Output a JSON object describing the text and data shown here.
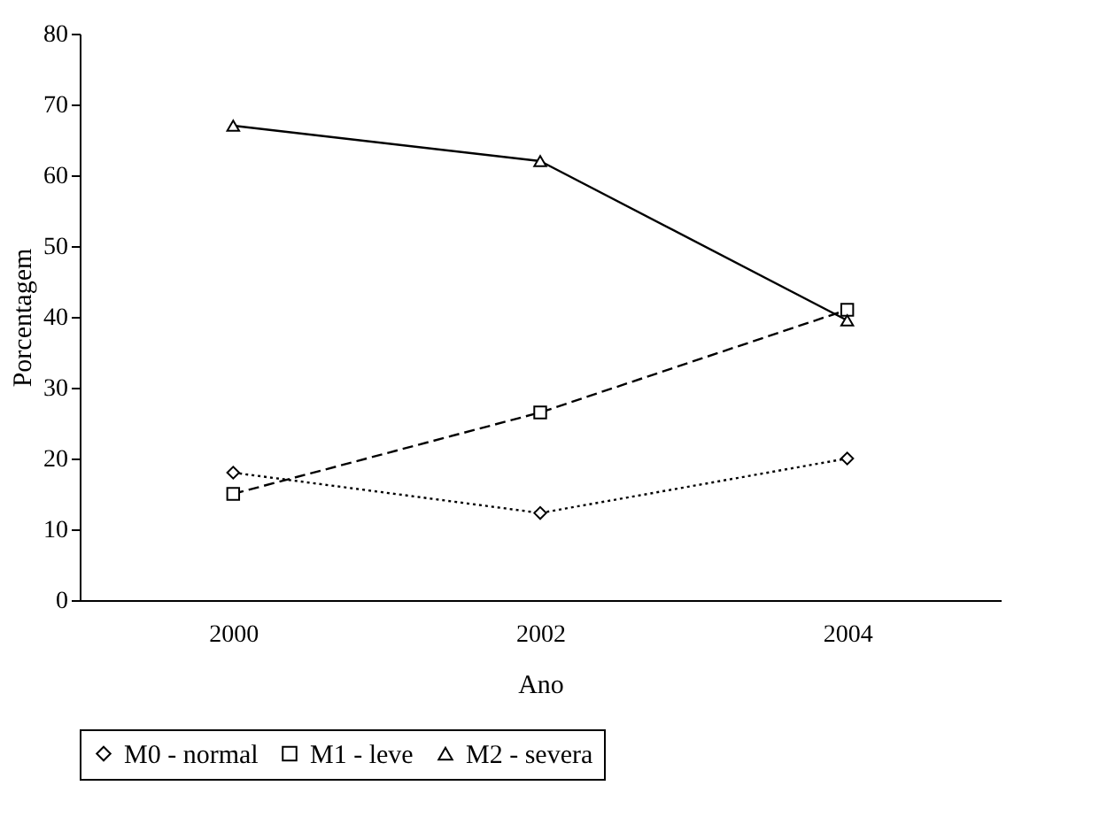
{
  "chart_data": {
    "type": "line",
    "xlabel": "Ano",
    "ylabel": "Porcentagem",
    "categories": [
      "2000",
      "2002",
      "2004"
    ],
    "series": [
      {
        "name": "M0 - normal",
        "color": "#000000",
        "marker": "diamond",
        "line_style": "dotted",
        "values": [
          18,
          12.3,
          20
        ]
      },
      {
        "name": "M1 - leve",
        "color": "#000000",
        "marker": "square",
        "line_style": "dashed",
        "values": [
          15,
          26.5,
          41
        ]
      },
      {
        "name": "M2 - severa",
        "color": "#000000",
        "marker": "triangle",
        "line_style": "solid",
        "values": [
          67,
          62,
          39.5
        ]
      }
    ],
    "ylim": [
      0,
      80
    ],
    "yticks": [
      0,
      10,
      20,
      30,
      40,
      50,
      60,
      70,
      80
    ],
    "grid": false,
    "legend": "bottom"
  }
}
